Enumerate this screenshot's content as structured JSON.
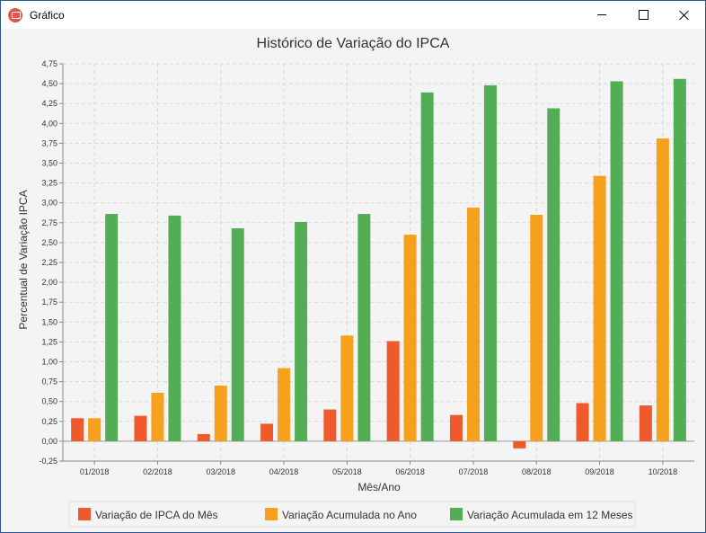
{
  "window": {
    "title": "Gráfico",
    "icon": "chart-app-icon"
  },
  "chart_data": {
    "type": "bar",
    "title": "Histórico de Variação do IPCA",
    "xlabel": "Mês/Ano",
    "ylabel": "Percentual de Variação IPCA",
    "categories": [
      "01/2018",
      "02/2018",
      "03/2018",
      "04/2018",
      "05/2018",
      "06/2018",
      "07/2018",
      "08/2018",
      "09/2018",
      "10/2018"
    ],
    "ylim": [
      -0.25,
      4.75
    ],
    "yticks": [
      "-0,25",
      "0,00",
      "0,25",
      "0,50",
      "0,75",
      "1,00",
      "1,25",
      "1,50",
      "1,75",
      "2,00",
      "2,25",
      "2,50",
      "2,75",
      "3,00",
      "3,25",
      "3,50",
      "3,75",
      "4,00",
      "4,25",
      "4,50",
      "4,75"
    ],
    "grid": true,
    "legend_position": "bottom",
    "series": [
      {
        "name": "Variação de IPCA do Mês",
        "color": "#ee5a2b",
        "values": [
          0.29,
          0.32,
          0.09,
          0.22,
          0.4,
          1.26,
          0.33,
          -0.09,
          0.48,
          0.45
        ]
      },
      {
        "name": "Variação Acumulada no Ano",
        "color": "#f5a11d",
        "values": [
          0.29,
          0.61,
          0.7,
          0.92,
          1.33,
          2.6,
          2.94,
          2.85,
          3.34,
          3.81
        ]
      },
      {
        "name": "Variação Acumulada em 12 Meses",
        "color": "#53ad54",
        "values": [
          2.86,
          2.84,
          2.68,
          2.76,
          2.86,
          4.39,
          4.48,
          4.19,
          4.53,
          4.56
        ]
      }
    ]
  }
}
